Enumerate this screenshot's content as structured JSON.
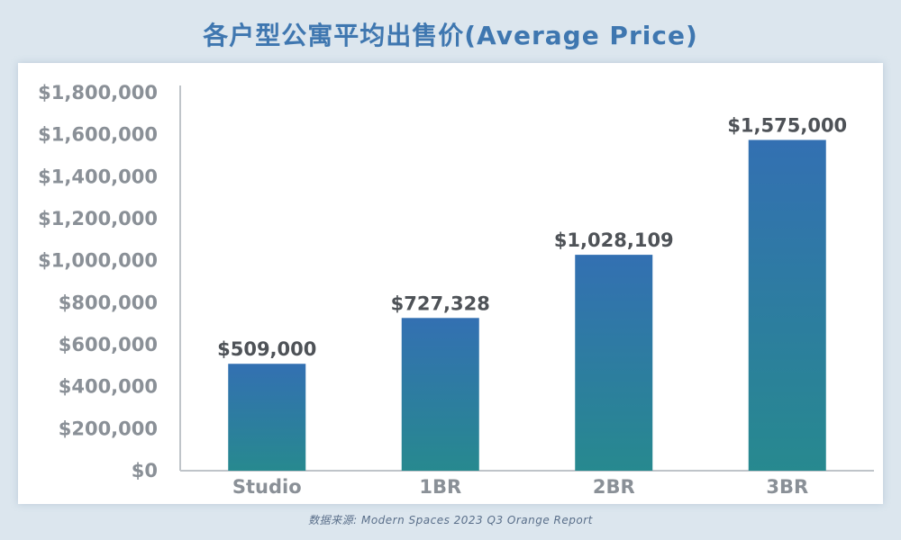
{
  "title": "各户型公寓平均出售价(Average Price)",
  "source": "数据来源: Modern Spaces 2023 Q3 Orange Report",
  "colors": {
    "background": "#dce6ee",
    "title": "#3f77b0",
    "bar_top": "#3370b2",
    "bar_bottom": "#27898f",
    "axis": "#bfc4c9",
    "tick_text": "#8a9097",
    "data_label": "#4e5257"
  },
  "chart_data": {
    "type": "bar",
    "title": "各户型公寓平均出售价(Average Price)",
    "xlabel": "",
    "ylabel": "",
    "categories": [
      "Studio",
      "1BR",
      "2BR",
      "3BR"
    ],
    "values": [
      509000,
      727328,
      1028109,
      1575000
    ],
    "data_labels": [
      "$509,000",
      "$727,328",
      "$1,028,109",
      "$1,575,000"
    ],
    "ylim": [
      0,
      1800000
    ],
    "yticks": [
      0,
      200000,
      400000,
      600000,
      800000,
      1000000,
      1200000,
      1400000,
      1600000,
      1800000
    ],
    "ytick_labels": [
      "$0",
      "$200,000",
      "$400,000",
      "$600,000",
      "$800,000",
      "$1,000,000",
      "$1,200,000",
      "$1,400,000",
      "$1,600,000",
      "$1,800,000"
    ],
    "grid": false,
    "legend": "none"
  }
}
